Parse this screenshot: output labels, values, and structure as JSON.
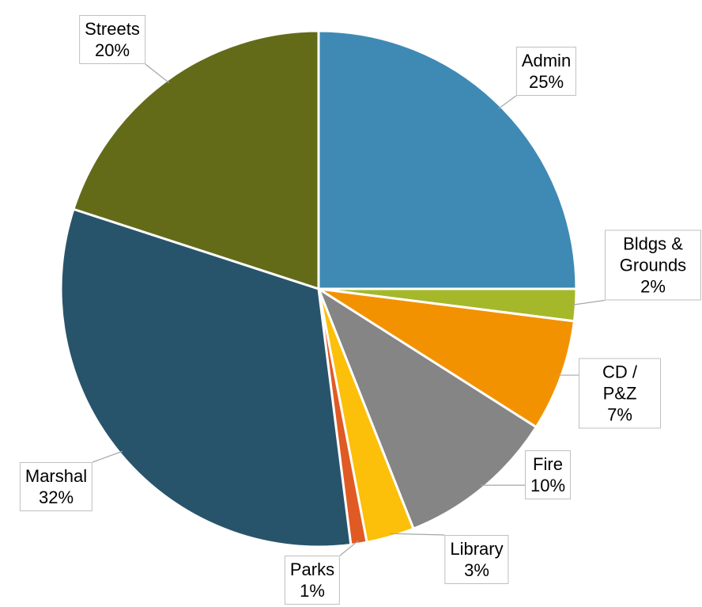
{
  "chart_data": {
    "type": "pie",
    "categories": [
      "Admin",
      "Bldgs & Grounds",
      "CD / P&Z",
      "Fire",
      "Library",
      "Parks",
      "Marshal",
      "Streets"
    ],
    "values": [
      25,
      2,
      7,
      10,
      3,
      1,
      32,
      20
    ],
    "value_labels": [
      "25%",
      "2%",
      "7%",
      "10%",
      "3%",
      "1%",
      "32%",
      "20%"
    ],
    "colors": [
      "#3f8ab4",
      "#a5b82a",
      "#f39200",
      "#858585",
      "#fcbf0a",
      "#e05a24",
      "#28546b",
      "#636b19"
    ]
  }
}
